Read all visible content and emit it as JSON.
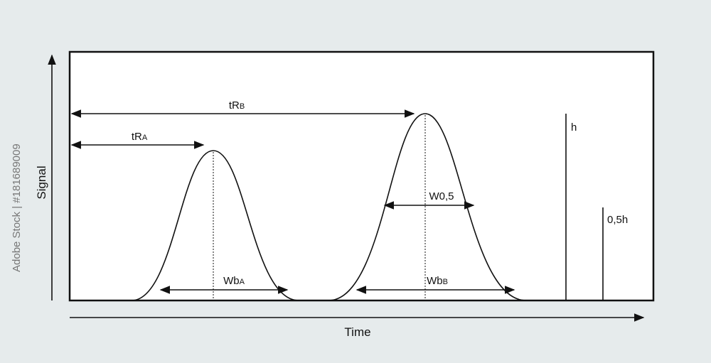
{
  "axes": {
    "y_label": "Signal",
    "x_label": "Time"
  },
  "labels": {
    "tRB": {
      "main": "tR",
      "sub": "B"
    },
    "tRA": {
      "main": "tR",
      "sub": "A"
    },
    "w05": {
      "main": "W0,5"
    },
    "WbA": {
      "main": "Wb",
      "sub": "A"
    },
    "WbB": {
      "main": "Wb",
      "sub": "B"
    },
    "h": {
      "main": "h"
    },
    "half_h": {
      "main": "0,5h"
    }
  },
  "watermark": "Adobe Stock | #181689009"
}
